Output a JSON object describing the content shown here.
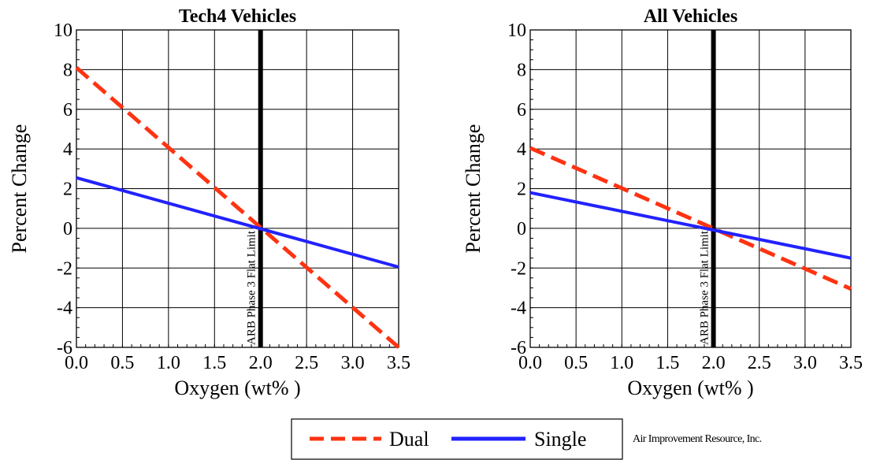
{
  "chart_data": [
    {
      "type": "line",
      "title": "Tech4 Vehicles",
      "xlabel": "Oxygen (wt% )",
      "ylabel": "Percent Change",
      "xlim": [
        0,
        3.5
      ],
      "ylim": [
        -6,
        10
      ],
      "xticks": [
        "0.0",
        "0.5",
        "1.0",
        "1.5",
        "2.0",
        "2.5",
        "3.0",
        "3.5"
      ],
      "yticks": [
        "-6",
        "-4",
        "-2",
        "0",
        "2",
        "4",
        "6",
        "8",
        "10"
      ],
      "grid": true,
      "vline": {
        "x": 2.0,
        "label": "ARB Phase 3 Flat Limit"
      },
      "series": [
        {
          "name": "Dual",
          "color": "#ff3311",
          "style": "dashed",
          "x": [
            0.0,
            3.5
          ],
          "y": [
            8.1,
            -6.0
          ]
        },
        {
          "name": "Single",
          "color": "#2222ff",
          "style": "solid",
          "x": [
            0.0,
            3.5
          ],
          "y": [
            2.55,
            -1.95
          ]
        }
      ]
    },
    {
      "type": "line",
      "title": "All Vehicles",
      "xlabel": "Oxygen (wt% )",
      "ylabel": "Percent Change",
      "xlim": [
        0,
        3.5
      ],
      "ylim": [
        -6,
        10
      ],
      "xticks": [
        "0.0",
        "0.5",
        "1.0",
        "1.5",
        "2.0",
        "2.5",
        "3.0",
        "3.5"
      ],
      "yticks": [
        "-6",
        "-4",
        "-2",
        "0",
        "2",
        "4",
        "6",
        "8",
        "10"
      ],
      "grid": true,
      "vline": {
        "x": 2.0,
        "label": "ARB Phase 3 Flat Limit"
      },
      "series": [
        {
          "name": "Dual",
          "color": "#ff3311",
          "style": "dashed",
          "x": [
            0.0,
            3.5
          ],
          "y": [
            4.05,
            -3.05
          ]
        },
        {
          "name": "Single",
          "color": "#2222ff",
          "style": "solid",
          "x": [
            0.0,
            3.5
          ],
          "y": [
            1.8,
            -1.5
          ]
        }
      ]
    }
  ],
  "legend": {
    "position": "bottom-center",
    "items": [
      {
        "label": "Dual",
        "color": "#ff3311",
        "style": "dashed"
      },
      {
        "label": "Single",
        "color": "#2222ff",
        "style": "solid"
      }
    ]
  },
  "credit": "Air Improvement Resource, Inc."
}
